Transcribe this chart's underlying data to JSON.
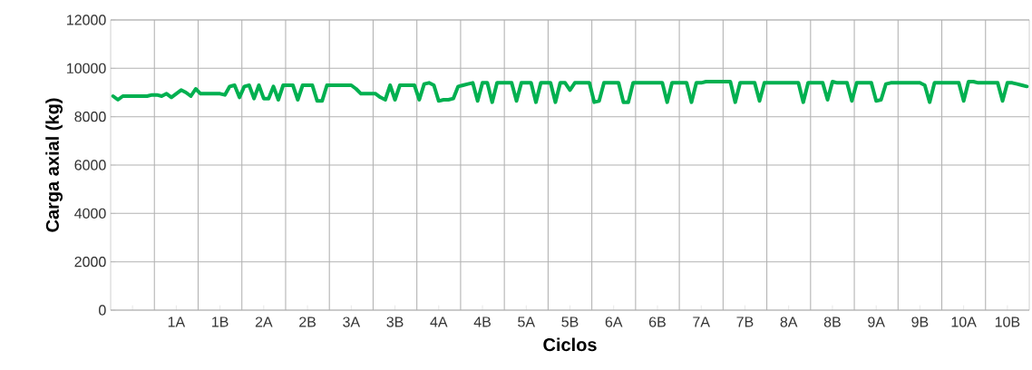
{
  "chart_data": {
    "type": "line",
    "xlabel": "Ciclos",
    "ylabel": "Carga axial (kg)",
    "categories": [
      null,
      null,
      null,
      null,
      null,
      null,
      null,
      null,
      null,
      null,
      null,
      null,
      null,
      "1A",
      null,
      null,
      null,
      null,
      null,
      null,
      null,
      null,
      "1B",
      null,
      null,
      null,
      null,
      null,
      null,
      null,
      null,
      "2A",
      null,
      null,
      null,
      null,
      null,
      null,
      null,
      null,
      "2B",
      null,
      null,
      null,
      null,
      null,
      null,
      null,
      null,
      "3A",
      null,
      null,
      null,
      null,
      null,
      null,
      null,
      null,
      "3B",
      null,
      null,
      null,
      null,
      null,
      null,
      null,
      null,
      "4A",
      null,
      null,
      null,
      null,
      null,
      null,
      null,
      null,
      "4B",
      null,
      null,
      null,
      null,
      null,
      null,
      null,
      null,
      "5A",
      null,
      null,
      null,
      null,
      null,
      null,
      null,
      null,
      "5B",
      null,
      null,
      null,
      null,
      null,
      null,
      null,
      null,
      "6A",
      null,
      null,
      null,
      null,
      null,
      null,
      null,
      null,
      "6B",
      null,
      null,
      null,
      null,
      null,
      null,
      null,
      null,
      "7A",
      null,
      null,
      null,
      null,
      null,
      null,
      null,
      null,
      "7B",
      null,
      null,
      null,
      null,
      null,
      null,
      null,
      null,
      "8A",
      null,
      null,
      null,
      null,
      null,
      null,
      null,
      null,
      "8B",
      null,
      null,
      null,
      null,
      null,
      null,
      null,
      null,
      "9A",
      null,
      null,
      null,
      null,
      null,
      null,
      null,
      null,
      "9B",
      null,
      null,
      null,
      null,
      null,
      null,
      null,
      null,
      "10A",
      null,
      null,
      null,
      null,
      null,
      null,
      null,
      null,
      "10B",
      null,
      null,
      null,
      null
    ],
    "ylim": [
      0,
      12000
    ],
    "yticks": [
      0,
      2000,
      4000,
      6000,
      8000,
      10000,
      12000
    ],
    "grid": true,
    "marker": "none",
    "line_style": "solid",
    "series": [
      {
        "color": "#00b050",
        "values": [
          8850,
          8700,
          8850,
          8850,
          8850,
          8850,
          8850,
          8850,
          8900,
          8900,
          8850,
          8950,
          8800,
          8950,
          9100,
          9000,
          8850,
          9150,
          8950,
          8950,
          8950,
          8950,
          8950,
          8900,
          9250,
          9300,
          8800,
          9250,
          9300,
          8750,
          9300,
          8750,
          8750,
          9250,
          8700,
          9300,
          9300,
          9300,
          8700,
          9300,
          9300,
          9300,
          8650,
          8650,
          9300,
          9300,
          9300,
          9300,
          9300,
          9300,
          9150,
          8950,
          8950,
          8950,
          8950,
          8800,
          8700,
          9300,
          8700,
          9300,
          9300,
          9300,
          9300,
          8700,
          9350,
          9400,
          9300,
          8650,
          8700,
          8700,
          8750,
          9250,
          9300,
          9350,
          9400,
          8650,
          9400,
          9400,
          8600,
          9400,
          9400,
          9400,
          9400,
          8650,
          9400,
          9400,
          9400,
          8600,
          9400,
          9400,
          9400,
          8600,
          9400,
          9400,
          9100,
          9400,
          9400,
          9400,
          9400,
          8600,
          8650,
          9400,
          9400,
          9400,
          9400,
          8600,
          8600,
          9400,
          9400,
          9400,
          9400,
          9400,
          9400,
          9400,
          8600,
          9400,
          9400,
          9400,
          9400,
          8600,
          9400,
          9400,
          9450,
          9450,
          9450,
          9450,
          9450,
          9450,
          8600,
          9400,
          9400,
          9400,
          9400,
          8650,
          9400,
          9400,
          9400,
          9400,
          9400,
          9400,
          9400,
          9400,
          8600,
          9400,
          9400,
          9400,
          9400,
          8700,
          9450,
          9400,
          9400,
          9400,
          8650,
          9400,
          9400,
          9400,
          9400,
          8650,
          8700,
          9350,
          9400,
          9400,
          9400,
          9400,
          9400,
          9400,
          9400,
          9300,
          8600,
          9400,
          9400,
          9400,
          9400,
          9400,
          9400,
          8650,
          9450,
          9450,
          9400,
          9400,
          9400,
          9400,
          9400,
          8650,
          9400,
          9400,
          9350,
          9300,
          9250
        ]
      }
    ]
  }
}
